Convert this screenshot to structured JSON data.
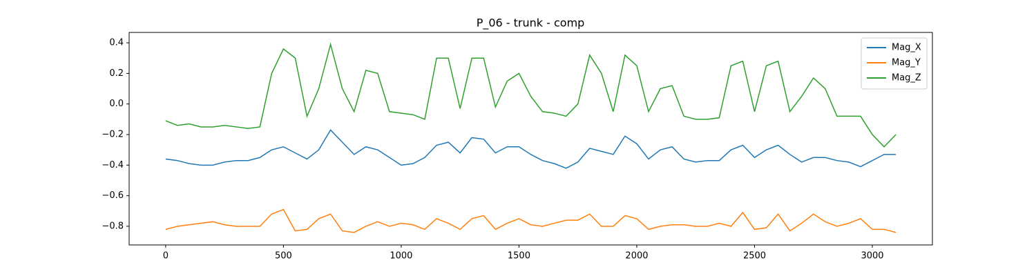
{
  "chart_data": {
    "type": "line",
    "title": "P_06 - trunk - comp",
    "x": [
      0,
      50,
      100,
      150,
      200,
      250,
      300,
      350,
      400,
      450,
      500,
      550,
      600,
      650,
      700,
      750,
      800,
      850,
      900,
      950,
      1000,
      1050,
      1100,
      1150,
      1200,
      1250,
      1300,
      1350,
      1400,
      1450,
      1500,
      1550,
      1600,
      1650,
      1700,
      1750,
      1800,
      1850,
      1900,
      1950,
      2000,
      2050,
      2100,
      2150,
      2200,
      2250,
      2300,
      2350,
      2400,
      2450,
      2500,
      2550,
      2600,
      2650,
      2700,
      2750,
      2800,
      2850,
      2900,
      2950,
      3000,
      3050,
      3100
    ],
    "series": [
      {
        "name": "Mag_X",
        "color": "#1f77b4",
        "values": [
          -0.36,
          -0.37,
          -0.39,
          -0.4,
          -0.4,
          -0.38,
          -0.37,
          -0.37,
          -0.35,
          -0.3,
          -0.28,
          -0.32,
          -0.36,
          -0.3,
          -0.17,
          -0.25,
          -0.33,
          -0.28,
          -0.3,
          -0.35,
          -0.4,
          -0.39,
          -0.35,
          -0.27,
          -0.25,
          -0.32,
          -0.22,
          -0.23,
          -0.32,
          -0.28,
          -0.28,
          -0.33,
          -0.37,
          -0.39,
          -0.42,
          -0.38,
          -0.29,
          -0.31,
          -0.33,
          -0.21,
          -0.26,
          -0.36,
          -0.3,
          -0.28,
          -0.36,
          -0.38,
          -0.37,
          -0.37,
          -0.3,
          -0.27,
          -0.35,
          -0.3,
          -0.27,
          -0.33,
          -0.38,
          -0.35,
          -0.35,
          -0.37,
          -0.38,
          -0.41,
          -0.37,
          -0.33,
          -0.33
        ]
      },
      {
        "name": "Mag_Y",
        "color": "#ff7f0e",
        "values": [
          -0.82,
          -0.8,
          -0.79,
          -0.78,
          -0.77,
          -0.79,
          -0.8,
          -0.8,
          -0.8,
          -0.72,
          -0.69,
          -0.83,
          -0.82,
          -0.75,
          -0.72,
          -0.83,
          -0.84,
          -0.8,
          -0.77,
          -0.8,
          -0.78,
          -0.79,
          -0.82,
          -0.75,
          -0.78,
          -0.82,
          -0.75,
          -0.73,
          -0.82,
          -0.78,
          -0.75,
          -0.79,
          -0.8,
          -0.78,
          -0.76,
          -0.76,
          -0.72,
          -0.8,
          -0.8,
          -0.73,
          -0.75,
          -0.82,
          -0.8,
          -0.79,
          -0.79,
          -0.8,
          -0.8,
          -0.78,
          -0.8,
          -0.71,
          -0.82,
          -0.81,
          -0.72,
          -0.83,
          -0.78,
          -0.72,
          -0.77,
          -0.8,
          -0.78,
          -0.75,
          -0.82,
          -0.82,
          -0.84
        ]
      },
      {
        "name": "Mag_Z",
        "color": "#2ca02c",
        "values": [
          -0.11,
          -0.14,
          -0.13,
          -0.15,
          -0.15,
          -0.14,
          -0.15,
          -0.16,
          -0.15,
          0.2,
          0.36,
          0.3,
          -0.08,
          0.1,
          0.39,
          0.1,
          -0.05,
          0.22,
          0.2,
          -0.05,
          -0.06,
          -0.07,
          -0.1,
          0.3,
          0.3,
          -0.03,
          0.3,
          0.3,
          -0.02,
          0.15,
          0.2,
          0.05,
          -0.05,
          -0.06,
          -0.08,
          0.0,
          0.32,
          0.2,
          -0.05,
          0.32,
          0.25,
          -0.05,
          0.1,
          0.12,
          -0.08,
          -0.1,
          -0.1,
          -0.09,
          0.25,
          0.28,
          -0.05,
          0.25,
          0.28,
          -0.05,
          0.05,
          0.17,
          0.1,
          -0.08,
          -0.08,
          -0.08,
          -0.2,
          -0.28,
          -0.2
        ]
      }
    ],
    "xlim": [
      -155,
      3255
    ],
    "ylim": [
      -0.922,
      0.468
    ],
    "xticks": [
      0,
      500,
      1000,
      1500,
      2000,
      2500,
      3000
    ],
    "yticks": [
      {
        "value": -0.8,
        "label": "−0.8"
      },
      {
        "value": -0.6,
        "label": "−0.6"
      },
      {
        "value": -0.4,
        "label": "−0.4"
      },
      {
        "value": -0.2,
        "label": "−0.2"
      },
      {
        "value": 0,
        "label": "0.0"
      },
      0.2,
      0.4
    ],
    "legend": "upper right",
    "grid": false
  }
}
